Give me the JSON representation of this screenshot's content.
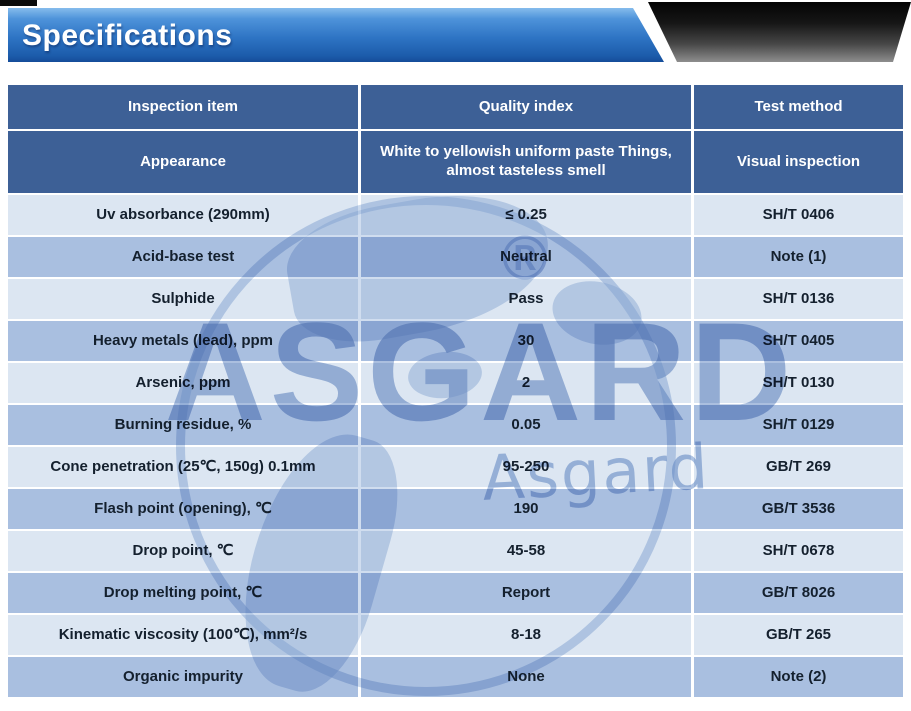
{
  "banner": {
    "title": "Specifications",
    "blue_top": "#4E93DA",
    "blue_bottom": "#154C99",
    "ribbon_top": "#040404",
    "ribbon_bottom": "#8E8E8E"
  },
  "watermark": {
    "big_text": "ASGARD",
    "script_text": "Asgard",
    "registered": "®",
    "color": "#7D9BCD"
  },
  "table": {
    "header_bg": "#3D6096",
    "row_light": "#DCE6F2",
    "row_dark": "#A9BFE0",
    "columns": [
      "Inspection item",
      "Quality index",
      "Test method"
    ],
    "appearance": {
      "item": "Appearance",
      "index": "White to yellowish uniform paste Things, almost tasteless smell",
      "method": "Visual inspection"
    },
    "rows": [
      {
        "item": "Uv absorbance (290mm)",
        "index": "≤ 0.25",
        "method": "SH/T 0406"
      },
      {
        "item": "Acid-base test",
        "index": "Neutral",
        "method": "Note (1)"
      },
      {
        "item": "Sulphide",
        "index": "Pass",
        "method": "SH/T 0136"
      },
      {
        "item": "Heavy metals (lead), ppm",
        "index": "30",
        "method": "SH/T 0405"
      },
      {
        "item": "Arsenic, ppm",
        "index": "2",
        "method": "SH/T 0130"
      },
      {
        "item": "Burning residue, %",
        "index": "0.05",
        "method": "SH/T 0129"
      },
      {
        "item": "Cone penetration (25℃, 150g) 0.1mm",
        "index": "95-250",
        "method": "GB/T 269"
      },
      {
        "item": "Flash point (opening), ℃",
        "index": "190",
        "method": "GB/T 3536"
      },
      {
        "item": "Drop point, ℃",
        "index": "45-58",
        "method": "SH/T 0678"
      },
      {
        "item": "Drop melting point, ℃",
        "index": "Report",
        "method": "GB/T 8026"
      },
      {
        "item": "Kinematic viscosity (100℃), mm²/s",
        "index": "8-18",
        "method": "GB/T 265"
      },
      {
        "item": "Organic impurity",
        "index": "None",
        "method": "Note (2)"
      }
    ]
  }
}
